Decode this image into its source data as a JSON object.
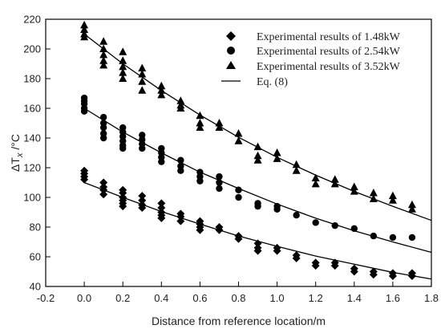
{
  "chart_data": {
    "type": "scatter",
    "xlabel": "Distance from reference location/m",
    "ylabel_main": "ΔT",
    "ylabel_sub": "x",
    "ylabel_unit": " /°C",
    "xlim": [
      -0.2,
      1.8
    ],
    "ylim": [
      40,
      220
    ],
    "x_ticks": [
      "-0.2",
      "0.0",
      "0.2",
      "0.4",
      "0.6",
      "0.8",
      "1.0",
      "1.2",
      "1.4",
      "1.6",
      "1.8"
    ],
    "y_ticks": [
      "40",
      "60",
      "80",
      "100",
      "120",
      "140",
      "160",
      "180",
      "200",
      "220"
    ],
    "legend_position": "top-right",
    "series": [
      {
        "name": "Experimental results of 1.48kW",
        "marker": "diamond",
        "points": [
          [
            0.0,
            118
          ],
          [
            0.0,
            116
          ],
          [
            0.0,
            114
          ],
          [
            0.0,
            112
          ],
          [
            0.1,
            110
          ],
          [
            0.1,
            107
          ],
          [
            0.1,
            105
          ],
          [
            0.1,
            102
          ],
          [
            0.2,
            105
          ],
          [
            0.2,
            103
          ],
          [
            0.2,
            100
          ],
          [
            0.2,
            98
          ],
          [
            0.2,
            96
          ],
          [
            0.2,
            94
          ],
          [
            0.3,
            101
          ],
          [
            0.3,
            98
          ],
          [
            0.3,
            95
          ],
          [
            0.3,
            93
          ],
          [
            0.4,
            96
          ],
          [
            0.4,
            93
          ],
          [
            0.4,
            90
          ],
          [
            0.4,
            88
          ],
          [
            0.4,
            86
          ],
          [
            0.5,
            89
          ],
          [
            0.5,
            87
          ],
          [
            0.5,
            84
          ],
          [
            0.6,
            84
          ],
          [
            0.6,
            82
          ],
          [
            0.6,
            80
          ],
          [
            0.6,
            78
          ],
          [
            0.7,
            80
          ],
          [
            0.7,
            78
          ],
          [
            0.8,
            74
          ],
          [
            0.8,
            72
          ],
          [
            0.9,
            69
          ],
          [
            0.9,
            66
          ],
          [
            0.9,
            64
          ],
          [
            1.0,
            66
          ],
          [
            1.0,
            64
          ],
          [
            1.1,
            61
          ],
          [
            1.1,
            59
          ],
          [
            1.2,
            56
          ],
          [
            1.2,
            54
          ],
          [
            1.3,
            56
          ],
          [
            1.3,
            54
          ],
          [
            1.4,
            52
          ],
          [
            1.4,
            50
          ],
          [
            1.5,
            50
          ],
          [
            1.5,
            48
          ],
          [
            1.6,
            49
          ],
          [
            1.6,
            47
          ],
          [
            1.7,
            49
          ],
          [
            1.7,
            47
          ]
        ]
      },
      {
        "name": "Experimental results of 2.54kW",
        "marker": "circle",
        "points": [
          [
            0.0,
            167
          ],
          [
            0.0,
            165
          ],
          [
            0.0,
            163
          ],
          [
            0.0,
            160
          ],
          [
            0.0,
            158
          ],
          [
            0.1,
            154
          ],
          [
            0.1,
            150
          ],
          [
            0.1,
            147
          ],
          [
            0.1,
            143
          ],
          [
            0.1,
            140
          ],
          [
            0.2,
            147
          ],
          [
            0.2,
            144
          ],
          [
            0.2,
            141
          ],
          [
            0.2,
            138
          ],
          [
            0.2,
            135
          ],
          [
            0.2,
            133
          ],
          [
            0.3,
            142
          ],
          [
            0.3,
            139
          ],
          [
            0.3,
            136
          ],
          [
            0.3,
            133
          ],
          [
            0.4,
            133
          ],
          [
            0.4,
            130
          ],
          [
            0.4,
            127
          ],
          [
            0.4,
            124
          ],
          [
            0.5,
            125
          ],
          [
            0.5,
            121
          ],
          [
            0.5,
            118
          ],
          [
            0.6,
            117
          ],
          [
            0.6,
            114
          ],
          [
            0.6,
            111
          ],
          [
            0.7,
            114
          ],
          [
            0.7,
            110
          ],
          [
            0.7,
            106
          ],
          [
            0.8,
            105
          ],
          [
            0.8,
            100
          ],
          [
            0.9,
            96
          ],
          [
            0.9,
            94
          ],
          [
            1.0,
            94
          ],
          [
            1.0,
            92
          ],
          [
            1.1,
            88
          ],
          [
            1.2,
            83
          ],
          [
            1.3,
            81
          ],
          [
            1.4,
            79
          ],
          [
            1.5,
            74
          ],
          [
            1.6,
            73
          ],
          [
            1.7,
            73
          ]
        ]
      },
      {
        "name": "Experimental results of 3.52kW",
        "marker": "triangle",
        "points": [
          [
            0.0,
            216
          ],
          [
            0.0,
            213
          ],
          [
            0.0,
            210
          ],
          [
            0.0,
            208
          ],
          [
            0.1,
            205
          ],
          [
            0.1,
            200
          ],
          [
            0.1,
            196
          ],
          [
            0.1,
            192
          ],
          [
            0.1,
            189
          ],
          [
            0.2,
            198
          ],
          [
            0.2,
            192
          ],
          [
            0.2,
            188
          ],
          [
            0.2,
            184
          ],
          [
            0.2,
            180
          ],
          [
            0.3,
            187
          ],
          [
            0.3,
            183
          ],
          [
            0.3,
            178
          ],
          [
            0.3,
            172
          ],
          [
            0.4,
            175
          ],
          [
            0.4,
            172
          ],
          [
            0.4,
            169
          ],
          [
            0.5,
            165
          ],
          [
            0.5,
            162
          ],
          [
            0.5,
            160
          ],
          [
            0.6,
            155
          ],
          [
            0.6,
            150
          ],
          [
            0.6,
            147
          ],
          [
            0.7,
            150
          ],
          [
            0.7,
            147
          ],
          [
            0.8,
            143
          ],
          [
            0.8,
            138
          ],
          [
            0.9,
            134
          ],
          [
            0.9,
            128
          ],
          [
            0.9,
            125
          ],
          [
            1.0,
            130
          ],
          [
            1.0,
            126
          ],
          [
            1.1,
            122
          ],
          [
            1.1,
            118
          ],
          [
            1.2,
            113
          ],
          [
            1.2,
            109
          ],
          [
            1.3,
            112
          ],
          [
            1.3,
            109
          ],
          [
            1.4,
            107
          ],
          [
            1.4,
            104
          ],
          [
            1.5,
            103
          ],
          [
            1.5,
            99
          ],
          [
            1.6,
            101
          ],
          [
            1.6,
            98
          ],
          [
            1.7,
            95
          ],
          [
            1.7,
            92
          ]
        ]
      },
      {
        "name": "Eq. (8)",
        "marker": "line",
        "curves": [
          {
            "x": [
              0.0,
              0.2,
              0.4,
              0.6,
              0.8,
              1.0,
              1.2,
              1.4,
              1.6,
              1.8
            ],
            "y": [
              110,
              100,
              90.5,
              82,
              74,
              67,
              60.5,
              55,
              49.5,
              45
            ]
          },
          {
            "x": [
              0.0,
              0.2,
              0.4,
              0.6,
              0.8,
              1.0,
              1.2,
              1.4,
              1.6,
              1.8
            ],
            "y": [
              160,
              144,
              130,
              117,
              106,
              95.5,
              86,
              77.5,
              70,
              63
            ]
          },
          {
            "x": [
              0.0,
              0.2,
              0.4,
              0.6,
              0.8,
              1.0,
              1.2,
              1.4,
              1.6,
              1.8
            ],
            "y": [
              210,
              190,
              172,
              155.5,
              140.5,
              127,
              115,
              104,
              94,
              84.5
            ]
          }
        ]
      }
    ]
  }
}
